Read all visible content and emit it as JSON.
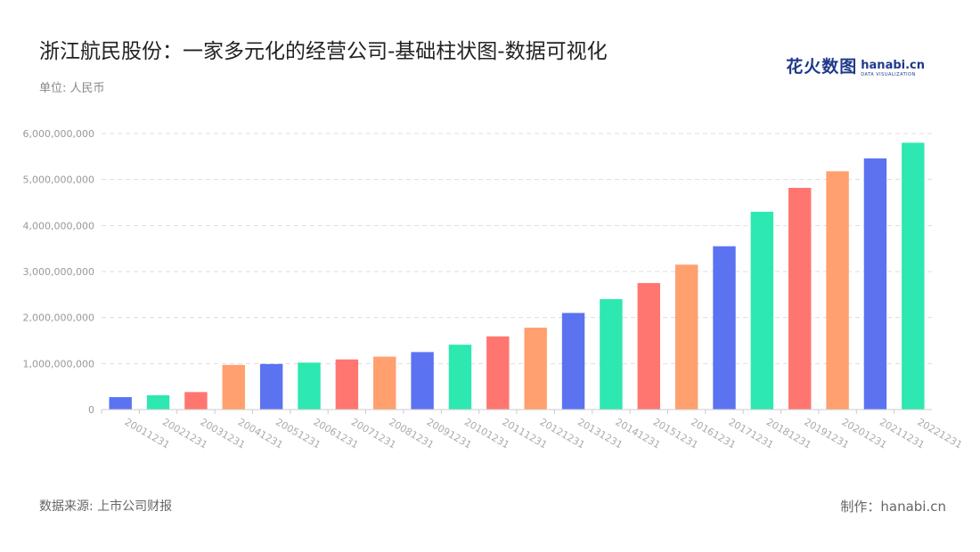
{
  "header": {
    "title": "浙江航民股份：一家多元化的经营公司-基础柱状图-数据可视化",
    "unit": "单位: 人民币"
  },
  "logo": {
    "cn": "花火数图",
    "en": "hanabi.cn",
    "sub": "DATA VISUALIZATION"
  },
  "footer": {
    "source": "数据来源: 上市公司财报",
    "credit": "制作：hanabi.cn"
  },
  "chart_data": {
    "type": "bar",
    "title": "浙江航民股份：一家多元化的经营公司-基础柱状图-数据可视化",
    "ylabel": "单位: 人民币",
    "xlabel": "",
    "ylim": [
      0,
      6000000000
    ],
    "yticks": [
      "0",
      "1,000,000,000",
      "2,000,000,000",
      "3,000,000,000",
      "4,000,000,000",
      "5,000,000,000",
      "6,000,000,000"
    ],
    "grid": true,
    "categories": [
      "20011231",
      "20021231",
      "20031231",
      "20041231",
      "20051231",
      "20061231",
      "20071231",
      "20081231",
      "20091231",
      "20101231",
      "20111231",
      "20121231",
      "20131231",
      "20141231",
      "20151231",
      "20161231",
      "20171231",
      "20181231",
      "20191231",
      "20201231",
      "20211231",
      "20221231"
    ],
    "values": [
      270000000,
      310000000,
      380000000,
      970000000,
      990000000,
      1020000000,
      1090000000,
      1150000000,
      1250000000,
      1410000000,
      1590000000,
      1780000000,
      2100000000,
      2400000000,
      2750000000,
      3150000000,
      3550000000,
      4300000000,
      4820000000,
      5180000000,
      5460000000,
      5800000000
    ],
    "colors": [
      "#5b73f0",
      "#2de8b0",
      "#ff7670",
      "#ffa06e"
    ]
  }
}
